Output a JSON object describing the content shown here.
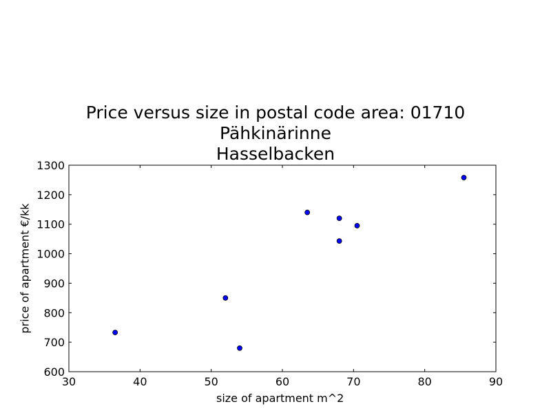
{
  "chart_data": {
    "type": "scatter",
    "title": [
      "Price versus size in postal code area: 01710",
      "Pähkinärinne",
      "Hasselbacken"
    ],
    "xlabel": "size of apartment m^2",
    "ylabel": "price of apartment €/kk",
    "xlim": [
      30,
      90
    ],
    "ylim": [
      600,
      1300
    ],
    "xticks": [
      30,
      40,
      50,
      60,
      70,
      80,
      90
    ],
    "yticks": [
      600,
      700,
      800,
      900,
      1000,
      1100,
      1200,
      1300
    ],
    "grid": false,
    "marker_color": "#0000ff",
    "points": [
      {
        "x": 36.5,
        "y": 733
      },
      {
        "x": 52,
        "y": 850
      },
      {
        "x": 54,
        "y": 680
      },
      {
        "x": 63.5,
        "y": 1140
      },
      {
        "x": 68,
        "y": 1120
      },
      {
        "x": 68,
        "y": 1043
      },
      {
        "x": 70.5,
        "y": 1095
      },
      {
        "x": 85.5,
        "y": 1258
      }
    ]
  }
}
